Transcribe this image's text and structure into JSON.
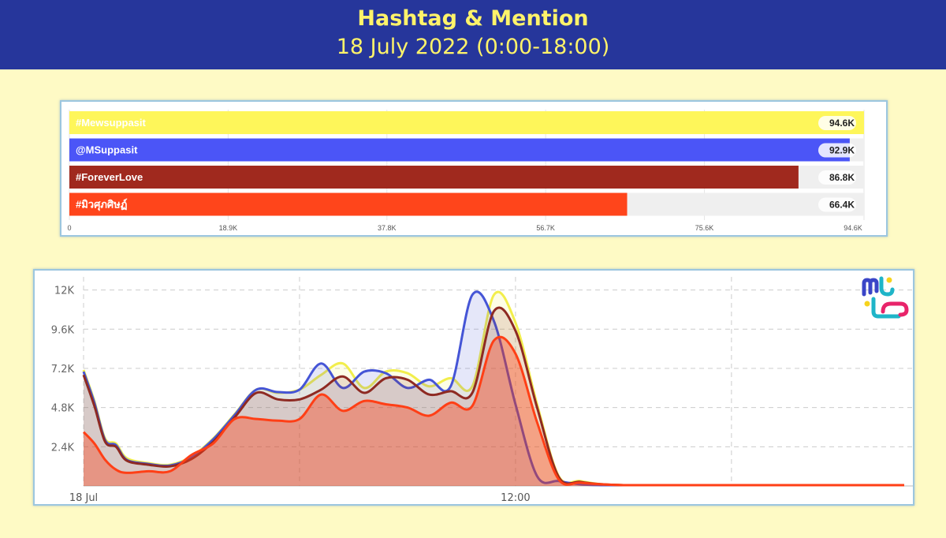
{
  "header": {
    "title": "Hashtag & Mention",
    "subtitle": "18 July 2022 (0:00-18:00)"
  },
  "chart_data": [
    {
      "type": "bar",
      "orientation": "horizontal",
      "categories": [
        "#Mewsuppasit",
        "@MSuppasit",
        "#ForeverLove",
        "#มิวศุภศิษฏ์"
      ],
      "values": [
        94.6,
        92.9,
        86.8,
        66.4
      ],
      "value_labels": [
        "94.6K",
        "92.9K",
        "86.8K",
        "66.4K"
      ],
      "colors": [
        "#fef65a",
        "#4b55f7",
        "#a0291e",
        "#ff451b"
      ],
      "xlim": [
        0,
        94.6
      ],
      "xticks": [
        0,
        18.9,
        37.8,
        56.7,
        75.6,
        94.6
      ],
      "xtick_labels": [
        "0",
        "18.9K",
        "37.8K",
        "56.7K",
        "75.6K",
        "94.6K"
      ]
    },
    {
      "type": "area",
      "x_unit": "hour",
      "xlim": [
        0,
        19.2
      ],
      "ylim": [
        0,
        12.8
      ],
      "y_unit": "K",
      "yticks": [
        2.4,
        4.8,
        7.2,
        9.6,
        12
      ],
      "ytick_labels": [
        "2.4K",
        "4.8K",
        "7.2K",
        "9.6K",
        "12K"
      ],
      "xticks": [
        0,
        10
      ],
      "xtick_labels": [
        "18 Jul",
        "12:00"
      ],
      "grid": true,
      "series": [
        {
          "color": "#f2ee4c",
          "x": [
            0,
            0.25,
            0.5,
            0.75,
            1,
            1.5,
            2,
            2.5,
            3,
            3.5,
            4,
            4.5,
            5,
            5.5,
            6,
            6.5,
            7,
            7.5,
            8,
            8.5,
            9,
            9.5,
            10,
            10.5,
            11,
            11.5,
            12,
            12.5,
            13,
            13.5,
            14,
            14.25,
            14.5,
            14.75,
            15,
            15.25,
            15.5,
            15.75,
            16,
            16.5,
            17,
            18,
            19
          ],
          "y": [
            7.1,
            5.2,
            2.9,
            2.6,
            1.7,
            1.4,
            1.3,
            1.8,
            2.9,
            4.4,
            5.9,
            5.7,
            5.9,
            6.8,
            7.5,
            6.0,
            7.0,
            6.9,
            6.1,
            6.6,
            6.1,
            11.7,
            10.0,
            5.0,
            0.6,
            0.3,
            0.1,
            0.05,
            0.05,
            0.05,
            0.05,
            0.05,
            0.05,
            0.05,
            0.05,
            0.05,
            0.05,
            0.05,
            0.05,
            0.05,
            0.05,
            0.05,
            0.05
          ]
        },
        {
          "color": "#4555d6",
          "x": [
            0,
            0.25,
            0.5,
            0.75,
            1,
            1.5,
            2,
            2.5,
            3,
            3.5,
            4,
            4.5,
            5,
            5.5,
            6,
            6.5,
            7,
            7.5,
            8,
            8.5,
            9,
            9.5,
            10,
            10.5,
            11,
            11.5,
            12,
            12.5,
            13,
            13.5,
            14,
            14.25,
            14.5,
            14.75,
            15,
            15.25,
            15.5,
            15.75,
            16,
            16.5,
            17,
            18,
            19
          ],
          "y": [
            7.0,
            5.1,
            2.8,
            2.5,
            1.6,
            1.35,
            1.25,
            1.75,
            2.85,
            4.35,
            5.9,
            5.75,
            5.9,
            7.5,
            6.0,
            7.0,
            6.9,
            6.0,
            6.5,
            6.1,
            11.7,
            10.1,
            5.0,
            0.6,
            0.3,
            0.1,
            0.05,
            0.05,
            0.05,
            0.05,
            0.05,
            0.05,
            0.05,
            0.05,
            0.05,
            0.05,
            0.05,
            0.05,
            0.05,
            0.05,
            0.05,
            0.05,
            0.05
          ]
        },
        {
          "color": "#8e2a22",
          "x": [
            0,
            0.25,
            0.5,
            0.75,
            1,
            1.5,
            2,
            2.5,
            3,
            3.5,
            4,
            4.5,
            5,
            5.5,
            6,
            6.5,
            7,
            7.5,
            8,
            8.5,
            9,
            9.5,
            10,
            10.5,
            11,
            11.5,
            12,
            12.5,
            13,
            13.5,
            14,
            14.25,
            14.5,
            14.75,
            15,
            15.25,
            15.5,
            15.75,
            16,
            16.5,
            17,
            18,
            19
          ],
          "y": [
            6.8,
            4.9,
            2.7,
            2.4,
            1.55,
            1.3,
            1.2,
            1.65,
            2.7,
            4.2,
            5.7,
            5.3,
            5.3,
            5.9,
            6.7,
            5.7,
            6.6,
            6.5,
            5.6,
            5.8,
            5.7,
            10.7,
            9.5,
            4.8,
            0.55,
            0.25,
            0.1,
            0.05,
            0.05,
            0.05,
            0.05,
            0.05,
            0.05,
            0.05,
            0.05,
            0.05,
            0.05,
            0.05,
            0.05,
            0.05,
            0.05,
            0.05,
            0.05
          ]
        },
        {
          "color": "#ff3f16",
          "x": [
            0,
            0.25,
            0.5,
            0.75,
            1,
            1.5,
            2,
            2.5,
            3,
            3.5,
            4,
            4.5,
            5,
            5.5,
            6,
            6.5,
            7,
            7.5,
            8,
            8.5,
            9,
            9.5,
            10,
            10.5,
            11,
            11.5,
            12,
            12.5,
            13,
            13.5,
            14,
            14.25,
            14.5,
            14.75,
            15,
            15.25,
            15.5,
            15.75,
            16,
            16.5,
            17,
            18,
            19
          ],
          "y": [
            3.3,
            2.6,
            1.6,
            1.0,
            0.8,
            0.9,
            0.9,
            1.9,
            2.6,
            4.1,
            4.1,
            4.0,
            4.1,
            5.6,
            4.6,
            5.2,
            5.0,
            4.8,
            4.3,
            5.1,
            4.9,
            8.9,
            8.1,
            3.9,
            0.4,
            0.2,
            0.1,
            0.05,
            0.05,
            0.05,
            0.05,
            0.05,
            0.05,
            0.05,
            0.05,
            0.05,
            0.05,
            0.05,
            0.05,
            0.05,
            0.05,
            0.05,
            0.05
          ]
        }
      ]
    }
  ]
}
